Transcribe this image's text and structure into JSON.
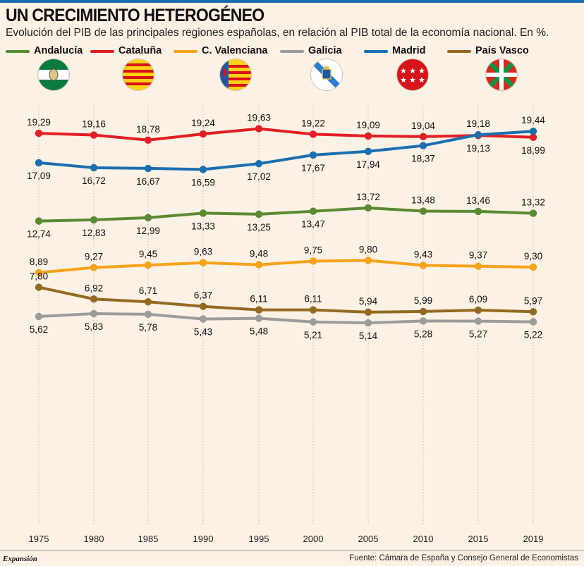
{
  "header": {
    "title": "UN CRECIMIENTO HETEROGÉNEO",
    "subtitle": "Evolución del PIB de las principales regiones españolas, en relación al PIB total de la economía nacional. En %."
  },
  "footer": {
    "brand": "Expansión",
    "source": "Fuente: Cámara de España y Consejo General de Economistas"
  },
  "chart_data": {
    "type": "line",
    "x": [
      "1975",
      "1980",
      "1985",
      "1990",
      "1995",
      "2000",
      "2005",
      "2010",
      "2015",
      "2019"
    ],
    "series": [
      {
        "name": "Andalucía",
        "color": "#5a8a32",
        "flag": "andalucia-flag-icon",
        "values": [
          12.74,
          12.83,
          12.99,
          13.33,
          13.25,
          13.47,
          13.72,
          13.48,
          13.46,
          13.32
        ],
        "labels": [
          "12,74",
          "12,83",
          "12,99",
          "13,33",
          "13,25",
          "13,47",
          "13,72",
          "13,48",
          "13,46",
          "13,32"
        ],
        "label_pos": [
          "below",
          "below",
          "below",
          "below",
          "below",
          "below",
          "above",
          "above",
          "above",
          "above"
        ]
      },
      {
        "name": "Cataluña",
        "color": "#e21f26",
        "flag": "cataluna-flag-icon",
        "values": [
          19.29,
          19.16,
          18.78,
          19.24,
          19.63,
          19.22,
          19.09,
          19.04,
          19.13,
          18.99
        ],
        "labels": [
          "19,29",
          "19,16",
          "18,78",
          "19,24",
          "19,63",
          "19,22",
          "19,09",
          "19,04",
          "19,13",
          "18,99"
        ],
        "label_pos": [
          "above",
          "above",
          "above",
          "above",
          "above",
          "above",
          "above",
          "above",
          "below",
          "below"
        ]
      },
      {
        "name": "C. Valenciana",
        "color": "#f6a21b",
        "flag": "valenciana-flag-icon",
        "values": [
          8.89,
          9.27,
          9.45,
          9.63,
          9.48,
          9.75,
          9.8,
          9.43,
          9.37,
          9.3
        ],
        "labels": [
          "8,89",
          "9,27",
          "9,45",
          "9,63",
          "9,48",
          "9,75",
          "9,80",
          "9,43",
          "9,37",
          "9,30"
        ],
        "label_pos": [
          "above",
          "above",
          "above",
          "above",
          "above",
          "above",
          "above",
          "above",
          "above",
          "above"
        ]
      },
      {
        "name": "Galicia",
        "color": "#9c9c9c",
        "flag": "galicia-flag-icon",
        "values": [
          5.62,
          5.83,
          5.78,
          5.43,
          5.48,
          5.21,
          5.14,
          5.28,
          5.27,
          5.22
        ],
        "labels": [
          "5,62",
          "5,83",
          "5,78",
          "5,43",
          "5,48",
          "5,21",
          "5,14",
          "5,28",
          "5,27",
          "5,22"
        ],
        "label_pos": [
          "below",
          "below",
          "below",
          "below",
          "below",
          "below",
          "below",
          "below",
          "below",
          "below"
        ]
      },
      {
        "name": "Madrid",
        "color": "#1a6fb0",
        "flag": "madrid-flag-icon",
        "values": [
          17.09,
          16.72,
          16.67,
          16.59,
          17.02,
          17.67,
          17.94,
          18.37,
          19.18,
          19.44
        ],
        "labels": [
          "17,09",
          "16,72",
          "16,67",
          "16,59",
          "17,02",
          "17,67",
          "17,94",
          "18,37",
          "19,18",
          "19,44"
        ],
        "label_pos": [
          "below",
          "below",
          "below",
          "below",
          "below",
          "below",
          "below",
          "below",
          "above",
          "above"
        ]
      },
      {
        "name": "País Vasco",
        "color": "#946a22",
        "flag": "paisvasco-flag-icon",
        "values": [
          7.8,
          6.92,
          6.71,
          6.37,
          6.11,
          6.11,
          5.94,
          5.99,
          6.09,
          5.97
        ],
        "labels": [
          "7,80",
          "6,92",
          "6,71",
          "6,37",
          "6,11",
          "6,11",
          "5,94",
          "5,99",
          "6,09",
          "5,97"
        ],
        "label_pos": [
          "above",
          "above",
          "above",
          "above",
          "above",
          "above",
          "above",
          "above",
          "above",
          "above"
        ]
      }
    ],
    "grid": "vertical",
    "legend": "top"
  }
}
